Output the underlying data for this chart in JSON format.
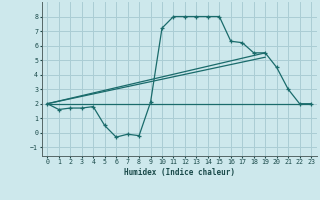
{
  "xlabel": "Humidex (Indice chaleur)",
  "background_color": "#cde8ec",
  "grid_color": "#aacdd4",
  "line_color": "#1a6b6b",
  "xlim": [
    -0.5,
    23.5
  ],
  "ylim": [
    -1.6,
    9.0
  ],
  "xticks": [
    0,
    1,
    2,
    3,
    4,
    5,
    6,
    7,
    8,
    9,
    10,
    11,
    12,
    13,
    14,
    15,
    16,
    17,
    18,
    19,
    20,
    21,
    22,
    23
  ],
  "yticks": [
    -1,
    0,
    1,
    2,
    3,
    4,
    5,
    6,
    7,
    8
  ],
  "series1_x": [
    0,
    1,
    2,
    3,
    4,
    5,
    6,
    7,
    8,
    9,
    10,
    11,
    12,
    13,
    14,
    15,
    16,
    17,
    18,
    19,
    20,
    21,
    22,
    23
  ],
  "series1_y": [
    2.0,
    1.6,
    1.7,
    1.7,
    1.8,
    0.5,
    -0.3,
    -0.1,
    -0.2,
    2.1,
    7.2,
    8.0,
    8.0,
    8.0,
    8.0,
    8.0,
    6.3,
    6.2,
    5.5,
    5.5,
    4.5,
    3.0,
    2.0,
    2.0
  ],
  "series2_x": [
    0,
    23
  ],
  "series2_y": [
    2.0,
    2.0
  ],
  "series3_x": [
    0,
    19
  ],
  "series3_y": [
    2.0,
    5.5
  ],
  "series4_x": [
    0,
    19
  ],
  "series4_y": [
    2.0,
    5.2
  ]
}
